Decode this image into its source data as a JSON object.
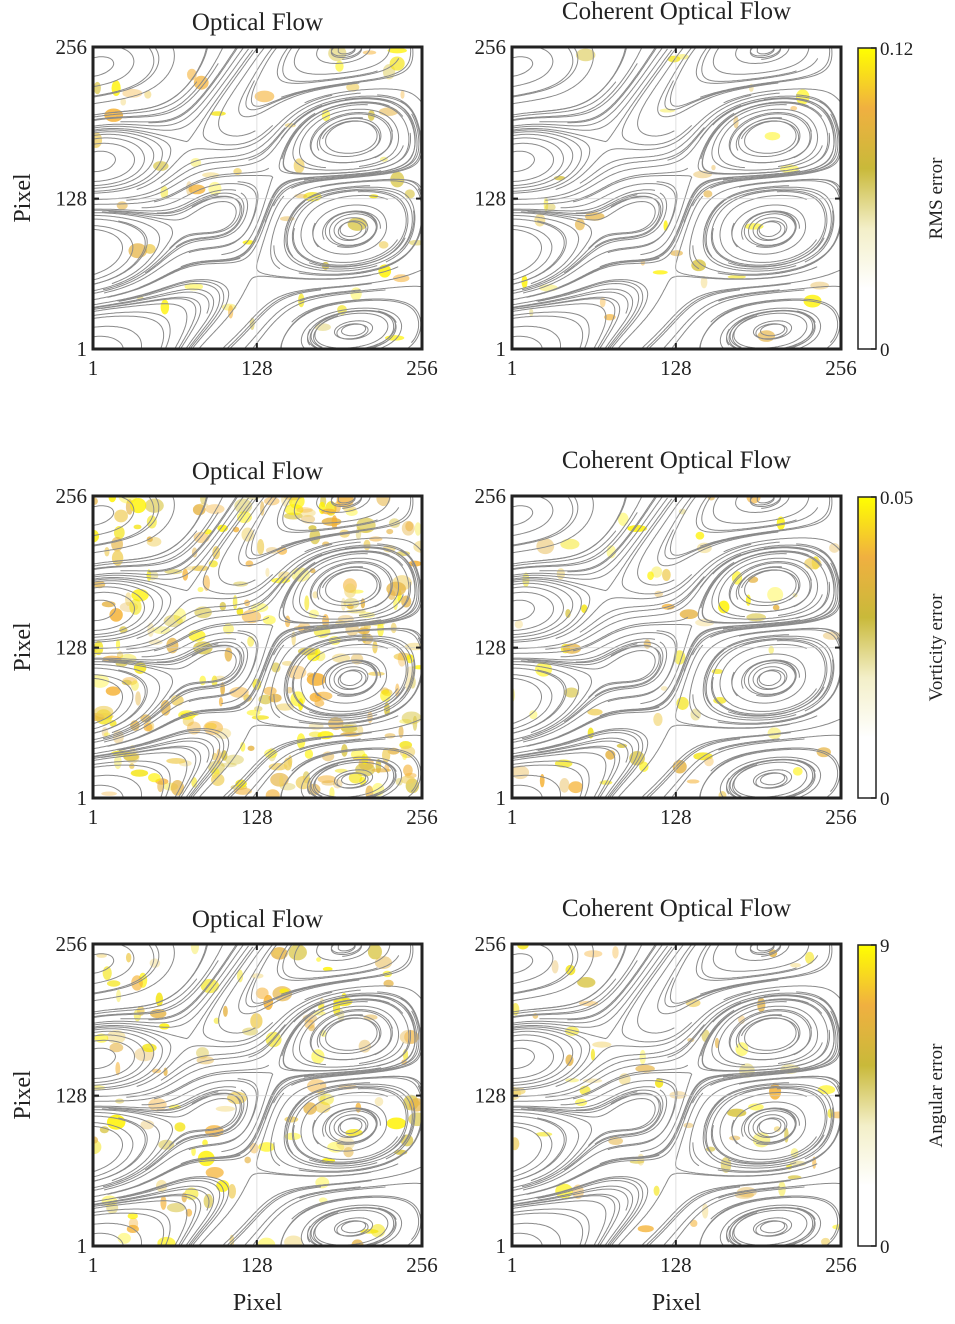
{
  "chart_data": [
    {
      "type": "heatmap",
      "title": "Optical Flow",
      "ylabel": "Pixel",
      "xlim": [
        1,
        256
      ],
      "xticks": [
        1,
        128,
        256
      ],
      "ylim": [
        1,
        256
      ],
      "yticks": [
        1,
        128,
        256
      ],
      "grid": true
    },
    {
      "type": "heatmap",
      "title": "Coherent Optical Flow",
      "xlim": [
        1,
        256
      ],
      "xticks": [
        1,
        128,
        256
      ],
      "ylim": [
        1,
        256
      ],
      "yticks": [
        1,
        128,
        256
      ],
      "grid": true,
      "colorbar": {
        "label": "RMS error",
        "lim": [
          0,
          0.12
        ],
        "ticks": [
          0,
          0.12
        ],
        "colors": [
          "#ffffff",
          "#ffffff",
          "#f3efc8",
          "#c9b93a",
          "#f0b040",
          "#ffff00"
        ]
      }
    },
    {
      "type": "heatmap",
      "title": "Optical Flow",
      "ylabel": "Pixel",
      "xlim": [
        1,
        256
      ],
      "xticks": [
        1,
        128,
        256
      ],
      "ylim": [
        1,
        256
      ],
      "yticks": [
        1,
        128,
        256
      ],
      "grid": true
    },
    {
      "type": "heatmap",
      "title": "Coherent Optical Flow",
      "xlim": [
        1,
        256
      ],
      "xticks": [
        1,
        128,
        256
      ],
      "ylim": [
        1,
        256
      ],
      "yticks": [
        1,
        128,
        256
      ],
      "grid": true,
      "colorbar": {
        "label": "Vorticity error",
        "lim": [
          0,
          0.05
        ],
        "ticks": [
          0,
          0.05
        ],
        "colors": [
          "#ffffff",
          "#ffffff",
          "#f3efc8",
          "#c9b93a",
          "#f0b040",
          "#ffff00"
        ]
      }
    },
    {
      "type": "heatmap",
      "title": "Optical Flow",
      "ylabel": "Pixel",
      "xlabel": "Pixel",
      "xlim": [
        1,
        256
      ],
      "xticks": [
        1,
        128,
        256
      ],
      "ylim": [
        1,
        256
      ],
      "yticks": [
        1,
        128,
        256
      ],
      "grid": true
    },
    {
      "type": "heatmap",
      "title": "Coherent Optical Flow",
      "xlabel": "Pixel",
      "xlim": [
        1,
        256
      ],
      "xticks": [
        1,
        128,
        256
      ],
      "ylim": [
        1,
        256
      ],
      "yticks": [
        1,
        128,
        256
      ],
      "grid": true,
      "colorbar": {
        "label": "Angular error",
        "lim": [
          0,
          9
        ],
        "ticks": [
          0,
          9
        ],
        "colors": [
          "#ffffff",
          "#ffffff",
          "#f3efc8",
          "#c9b93a",
          "#f0b040",
          "#ffff00"
        ]
      }
    }
  ]
}
